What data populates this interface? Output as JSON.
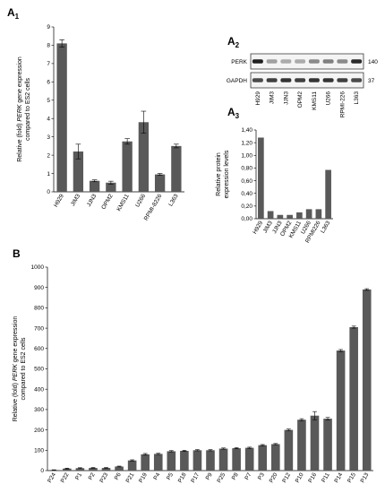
{
  "panels": {
    "a1": {
      "letter": "A",
      "sub": "1"
    },
    "a2": {
      "letter": "A",
      "sub": "2"
    },
    "a3": {
      "letter": "A",
      "sub": "3"
    },
    "b": {
      "letter": "B"
    }
  },
  "blot": {
    "rows": [
      {
        "protein": "PERK",
        "size": "140"
      },
      {
        "protein": "GAPDH",
        "size": "37"
      }
    ],
    "lanes": [
      "H929",
      "JIM3",
      "JJN3",
      "OPM2",
      "KMS11",
      "U266",
      "RPMI-226",
      "L363"
    ],
    "perk_intensity": [
      0.95,
      0.35,
      0.3,
      0.3,
      0.45,
      0.5,
      0.45,
      0.9
    ],
    "gapdh_intensity": [
      0.75,
      0.8,
      0.85,
      0.8,
      0.85,
      0.85,
      0.8,
      0.75
    ]
  },
  "chart_data": [
    {
      "id": "A1",
      "type": "bar",
      "ylabel_pre": "Relative (fold) ",
      "ylabel_italic": "PERK",
      "ylabel_post": " gene expression",
      "ylabel_line2": "compared to ES2 cells",
      "categories": [
        "H929",
        "JIM3",
        "JJN3",
        "OPM2",
        "KMS11",
        "U266",
        "RPMI-8226",
        "L363"
      ],
      "values": [
        8.1,
        2.2,
        0.6,
        0.5,
        2.75,
        3.8,
        0.95,
        2.5
      ],
      "errors": [
        0.2,
        0.4,
        0.05,
        0.08,
        0.15,
        0.6,
        0.05,
        0.1
      ],
      "ylim": [
        0,
        9
      ],
      "yticks": [
        "0",
        "1",
        "2",
        "3",
        "4",
        "5",
        "6",
        "7",
        "8",
        "9"
      ],
      "bar_color": "#595959"
    },
    {
      "id": "A3",
      "type": "bar",
      "ylabel_line1": "Relative protein",
      "ylabel_line2": "expression levels",
      "categories": [
        "H929",
        "JIM3",
        "JJN3",
        "OPM2",
        "KMS11",
        "U266",
        "RPMI226",
        "L363"
      ],
      "values": [
        1.28,
        0.12,
        0.06,
        0.06,
        0.1,
        0.15,
        0.15,
        0.77
      ],
      "ylim": [
        0,
        1.4
      ],
      "yticks": [
        "0,00",
        "0,20",
        "0,40",
        "0,60",
        "0,80",
        "1,00",
        "1,20",
        "1,40"
      ],
      "bar_color": "#595959"
    },
    {
      "id": "B",
      "type": "bar",
      "ylabel_pre": "Relative (fold) ",
      "ylabel_italic": "PERK",
      "ylabel_post": " gene expression",
      "ylabel_line2": "compared to ES2 cells",
      "categories": [
        "P24",
        "P22",
        "P1",
        "P2",
        "P23",
        "P6",
        "P21",
        "P19",
        "P4",
        "P5",
        "P18",
        "P17",
        "P9",
        "P25",
        "P8",
        "P7",
        "P3",
        "P20",
        "P12",
        "P10",
        "P16",
        "P11",
        "P14",
        "P15",
        "P13"
      ],
      "values": [
        3,
        10,
        12,
        13,
        13,
        20,
        50,
        80,
        82,
        95,
        97,
        100,
        100,
        108,
        110,
        112,
        125,
        130,
        200,
        250,
        270,
        255,
        590,
        705,
        890
      ],
      "errors": [
        1,
        2,
        2,
        2,
        2,
        2,
        3,
        4,
        3,
        3,
        3,
        3,
        3,
        3,
        3,
        3,
        3,
        3,
        4,
        5,
        20,
        6,
        5,
        5,
        4
      ],
      "ylim": [
        0,
        1000
      ],
      "yticks": [
        "0",
        "100",
        "200",
        "300",
        "400",
        "500",
        "600",
        "700",
        "800",
        "900",
        "1000"
      ],
      "bar_color": "#595959"
    }
  ]
}
